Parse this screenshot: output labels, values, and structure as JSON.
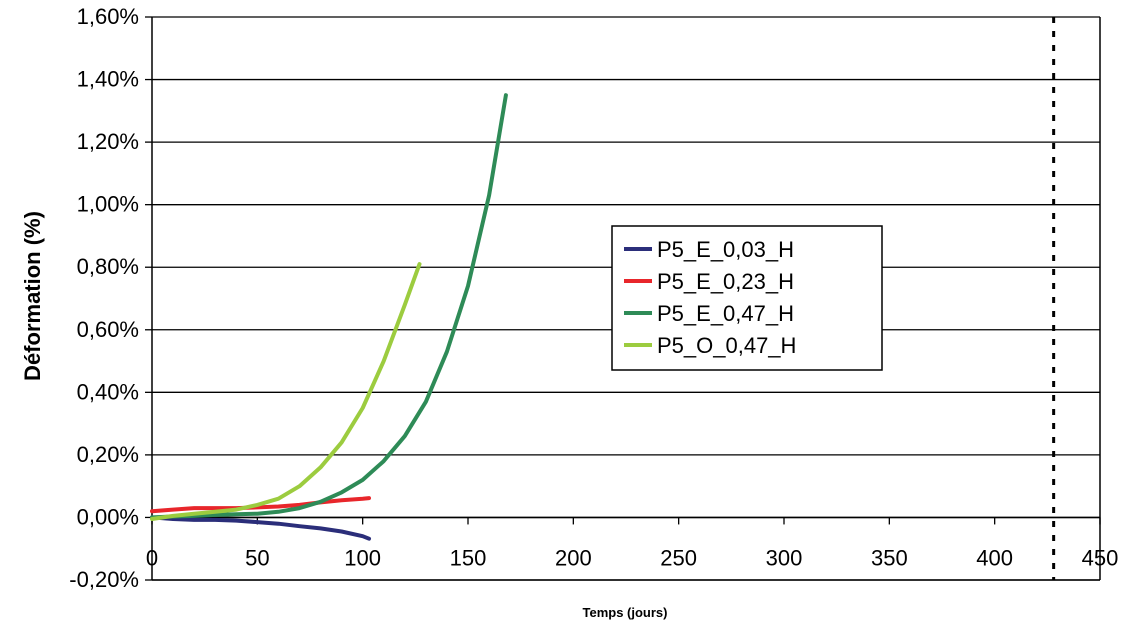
{
  "chart_data": {
    "type": "line",
    "title": "",
    "xlabel": "Temps (jours)",
    "ylabel": "Déformation (%)",
    "xlim": [
      0,
      450
    ],
    "ylim": [
      -0.2,
      1.6
    ],
    "x_ticks": [
      0,
      50,
      100,
      150,
      200,
      250,
      300,
      350,
      400,
      450
    ],
    "x_tick_labels": [
      "0",
      "50",
      "100",
      "150",
      "200",
      "250",
      "300",
      "350",
      "400",
      "450"
    ],
    "y_ticks": [
      -0.2,
      0.0,
      0.2,
      0.4,
      0.6,
      0.8,
      1.0,
      1.2,
      1.4,
      1.6
    ],
    "y_tick_labels": [
      "-0,20%",
      "0,00%",
      "0,20%",
      "0,40%",
      "0,60%",
      "0,80%",
      "1,00%",
      "1,20%",
      "1,40%",
      "1,60%"
    ],
    "grid": "horizontal",
    "legend_position": "center-right",
    "reference_line": {
      "x": 428,
      "style": "dotted"
    },
    "series": [
      {
        "name": "P5_E_0,03_H",
        "color": "#2b2e7a",
        "x": [
          0,
          10,
          20,
          30,
          40,
          50,
          60,
          70,
          80,
          90,
          100,
          103
        ],
        "y": [
          0.0,
          -0.005,
          -0.008,
          -0.008,
          -0.01,
          -0.015,
          -0.02,
          -0.028,
          -0.035,
          -0.045,
          -0.06,
          -0.068
        ]
      },
      {
        "name": "P5_E_0,23_H",
        "color": "#e8262b",
        "x": [
          0,
          10,
          20,
          30,
          40,
          50,
          60,
          70,
          80,
          90,
          100,
          103
        ],
        "y": [
          0.02,
          0.025,
          0.03,
          0.03,
          0.03,
          0.032,
          0.035,
          0.04,
          0.048,
          0.055,
          0.06,
          0.062
        ]
      },
      {
        "name": "P5_E_0,47_H",
        "color": "#2e8b57",
        "x": [
          0,
          10,
          20,
          30,
          40,
          50,
          60,
          70,
          80,
          90,
          100,
          110,
          120,
          130,
          140,
          150,
          160,
          168
        ],
        "y": [
          0.0,
          0.003,
          0.005,
          0.008,
          0.01,
          0.012,
          0.018,
          0.03,
          0.05,
          0.08,
          0.12,
          0.18,
          0.26,
          0.37,
          0.53,
          0.74,
          1.03,
          1.35
        ]
      },
      {
        "name": "P5_O_0,47_H",
        "color": "#9ccc3f",
        "x": [
          0,
          10,
          20,
          30,
          40,
          50,
          60,
          70,
          80,
          90,
          100,
          110,
          120,
          127
        ],
        "y": [
          -0.005,
          0.005,
          0.012,
          0.018,
          0.025,
          0.04,
          0.06,
          0.1,
          0.16,
          0.24,
          0.35,
          0.5,
          0.68,
          0.81
        ]
      }
    ]
  }
}
